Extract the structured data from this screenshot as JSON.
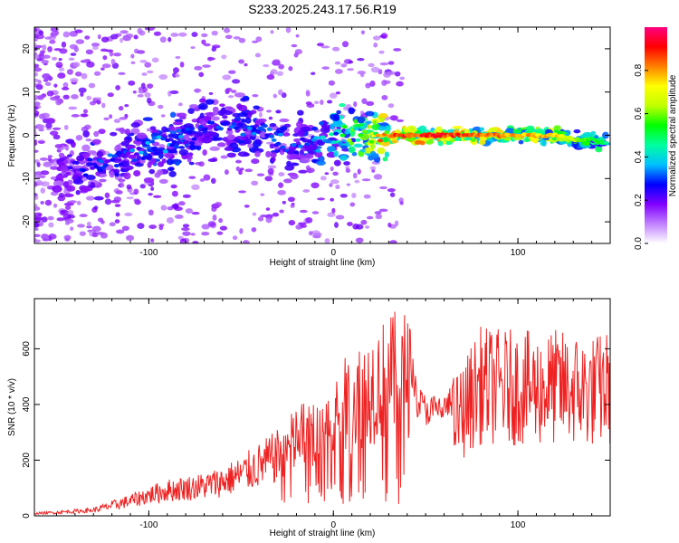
{
  "title": "S233.2025.243.17.56.R19",
  "chart_data": [
    {
      "type": "heatmap",
      "xlabel": "Height of straight line (km)",
      "ylabel": "Frequency (Hz)",
      "xlim": [
        -162,
        150
      ],
      "ylim": [
        -25,
        25
      ],
      "xticks": [
        -100,
        0,
        100
      ],
      "xtick_labels": [
        "-100",
        "0",
        "100"
      ],
      "yticks": [
        -20,
        -10,
        0,
        10,
        20
      ],
      "ytick_labels": [
        "-20",
        "-10",
        "0",
        "10",
        "20"
      ],
      "colorbar": {
        "label": "Normalized spectral amplitude",
        "range": [
          0.0,
          1.0
        ],
        "ticks": [
          0.0,
          0.2,
          0.4,
          0.6,
          0.8
        ],
        "tick_labels": [
          "0.0",
          "0.2",
          "0.4",
          "0.6",
          "0.8"
        ],
        "colors": [
          "#ffffff",
          "#c080ff",
          "#8000ff",
          "#0000ff",
          "#00c0ff",
          "#00ffa0",
          "#00ff00",
          "#c0ff00",
          "#ffff00",
          "#ff8000",
          "#ff0000",
          "#ff0080"
        ]
      },
      "ridge": {
        "x": [
          -145,
          -130,
          -115,
          -100,
          -85,
          -70,
          -55,
          -40,
          -25,
          -10,
          0,
          10,
          20,
          30,
          40,
          60,
          80,
          100,
          120,
          130,
          140,
          148
        ],
        "frequency": [
          -8,
          -7,
          -5,
          -3,
          -1,
          1,
          2,
          1,
          -2,
          -2,
          0,
          0,
          0,
          0,
          0,
          0,
          0,
          0,
          0,
          -1,
          -1,
          -2
        ],
        "amplitude": [
          0.25,
          0.3,
          0.3,
          0.35,
          0.35,
          0.3,
          0.3,
          0.35,
          0.3,
          0.35,
          0.45,
          0.6,
          0.75,
          0.9,
          0.95,
          0.95,
          0.9,
          0.85,
          0.8,
          0.7,
          0.6,
          0.5
        ]
      }
    },
    {
      "type": "line",
      "xlabel": "Height of straight line (km)",
      "ylabel": "SNR (10 * v/v)",
      "xlim": [
        -162,
        150
      ],
      "ylim": [
        0,
        780
      ],
      "xticks": [
        -100,
        0,
        100
      ],
      "xtick_labels": [
        "-100",
        "0",
        "100"
      ],
      "yticks": [
        0,
        200,
        400,
        600
      ],
      "ytick_labels": [
        "0",
        "200",
        "400",
        "600"
      ],
      "series": [
        {
          "name": "SNR",
          "color": "#ee2222",
          "x": [
            -162,
            -150,
            -140,
            -130,
            -120,
            -110,
            -100,
            -90,
            -80,
            -70,
            -60,
            -50,
            -40,
            -30,
            -20,
            -10,
            0,
            10,
            20,
            30,
            35,
            41,
            45,
            50,
            55,
            60,
            65,
            70,
            75,
            80,
            90,
            100,
            110,
            120,
            130,
            140,
            150
          ],
          "values": [
            10,
            15,
            20,
            25,
            45,
            65,
            90,
            110,
            120,
            130,
            150,
            180,
            220,
            260,
            330,
            380,
            430,
            500,
            560,
            600,
            620,
            620,
            420,
            380,
            380,
            380,
            420,
            450,
            520,
            570,
            560,
            560,
            550,
            560,
            550,
            540,
            560
          ]
        }
      ]
    }
  ]
}
